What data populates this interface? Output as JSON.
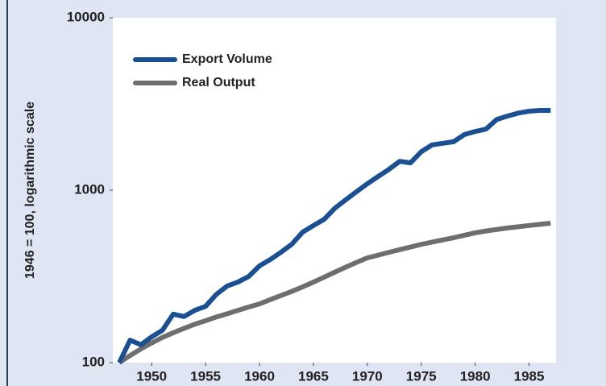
{
  "chart_data": {
    "type": "line",
    "ylabel": "1946 = 100, logarithmic scale",
    "yscale": "log",
    "x": [
      1947,
      1948,
      1949,
      1950,
      1951,
      1952,
      1953,
      1954,
      1955,
      1956,
      1957,
      1958,
      1959,
      1960,
      1961,
      1962,
      1963,
      1964,
      1965,
      1966,
      1967,
      1968,
      1969,
      1970,
      1971,
      1972,
      1973,
      1974,
      1975,
      1976,
      1977,
      1978,
      1979,
      1980,
      1981,
      1982,
      1983,
      1984,
      1985,
      1986,
      1987
    ],
    "series": [
      {
        "name": "Export Volume",
        "color": "#1a4f91",
        "values": [
          100,
          135,
          127,
          141,
          154,
          191,
          185,
          201,
          212,
          249,
          278,
          293,
          316,
          364,
          396,
          437,
          486,
          571,
          623,
          678,
          787,
          880,
          980,
          1090,
          1200,
          1320,
          1470,
          1440,
          1670,
          1830,
          1870,
          1910,
          2100,
          2190,
          2260,
          2570,
          2690,
          2800,
          2870,
          2900,
          2900
        ]
      },
      {
        "name": "Real Output",
        "color": "#6e6e6e",
        "values": [
          100,
          110,
          120,
          130,
          140,
          149,
          158,
          167,
          175,
          184,
          192,
          201,
          210,
          219,
          232,
          245,
          259,
          275,
          293,
          313,
          335,
          358,
          381,
          405,
          420,
          436,
          452,
          468,
          485,
          500,
          515,
          530,
          548,
          566,
          580,
          592,
          604,
          614,
          624,
          634,
          643
        ]
      }
    ],
    "xlim": [
      1946.4,
      1987.5
    ],
    "xticks": [
      1950,
      1955,
      1960,
      1965,
      1970,
      1975,
      1980,
      1985
    ],
    "ylim": [
      100,
      10000
    ],
    "yticks": [
      100,
      1000,
      10000
    ],
    "legend": "upper left"
  }
}
